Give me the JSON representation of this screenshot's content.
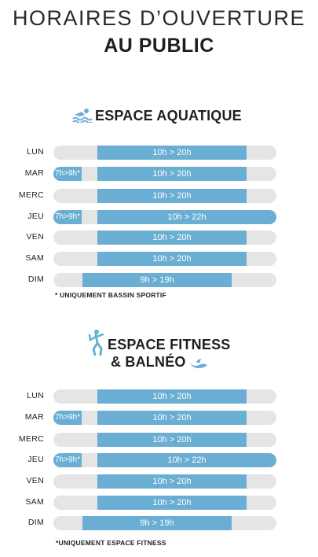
{
  "title": {
    "line1": "HORAIRES D’OUVERTURE",
    "line2": "AU PUBLIC"
  },
  "colors": {
    "bar": "#6aaed3",
    "track": "#e5e5e5"
  },
  "aquatique": {
    "icon": "swimmer-icon",
    "heading": "ESPACE AQUATIQUE",
    "rows": [
      {
        "day": "LUN",
        "early": "",
        "hours": "10h > 20h"
      },
      {
        "day": "MAR",
        "early": "7h>9h*",
        "hours": "10h > 20h"
      },
      {
        "day": "MERC",
        "early": "",
        "hours": "10h > 20h"
      },
      {
        "day": "JEU",
        "early": "7h>9h*",
        "hours": "10h > 22h"
      },
      {
        "day": "VEN",
        "early": "",
        "hours": "10h > 20h"
      },
      {
        "day": "SAM",
        "early": "",
        "hours": "10h > 20h"
      },
      {
        "day": "DIM",
        "early": "",
        "hours": "9h > 19h"
      }
    ],
    "note": "* UNIQUEMENT BASSIN SPORTIF"
  },
  "fitness": {
    "icon": "fitness-person-icon",
    "wave_icon": "wave-icon",
    "heading_line1": "ESPACE FITNESS",
    "heading_line2": "& BALNÉO",
    "rows": [
      {
        "day": "LUN",
        "early": "",
        "hours": "10h > 20h"
      },
      {
        "day": "MAR",
        "early": "7h>9h*",
        "hours": "10h > 20h"
      },
      {
        "day": "MERC",
        "early": "",
        "hours": "10h > 20h"
      },
      {
        "day": "JEU",
        "early": "7h>9h*",
        "hours": "10h > 22h"
      },
      {
        "day": "VEN",
        "early": "",
        "hours": "10h > 20h"
      },
      {
        "day": "SAM",
        "early": "",
        "hours": "10h > 20h"
      },
      {
        "day": "DIM",
        "early": "",
        "hours": "9h > 19h"
      }
    ],
    "note": "*UNIQUEMENT ESPACE FITNESS"
  }
}
